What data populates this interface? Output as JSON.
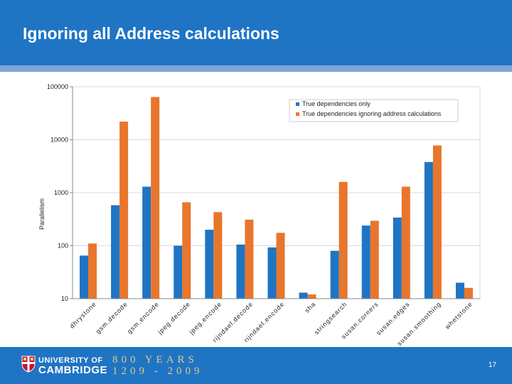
{
  "slide": {
    "title": "Ignoring all Address calculations",
    "page_number": "17"
  },
  "footer": {
    "university_line1": "UNIVERSITY OF",
    "university_line2": "CAMBRIDGE",
    "anniversary_line1": "800 YEARS",
    "anniversary_line2": "1209 - 2009"
  },
  "colors": {
    "header": "#1f74c4",
    "series_true": "#1f74c4",
    "series_ignore": "#e8762d"
  },
  "chart_data": {
    "type": "bar",
    "title": "",
    "xlabel": "",
    "ylabel": "Parallelism",
    "yscale": "log",
    "ylim": [
      10,
      100000
    ],
    "y_ticks": [
      10,
      100,
      1000,
      10000,
      100000
    ],
    "y_tick_labels": [
      "10",
      "100",
      "1000",
      "10000",
      "100000"
    ],
    "legend_position": "top-right",
    "categories": [
      "dhrystone",
      "gsm.decode",
      "gsm.encode",
      "jpeg.decode",
      "jpeg.encode",
      "rijndael.decode",
      "rijndael.encode",
      "sha",
      "stringsearch",
      "susan.corners",
      "susan.edges",
      "susan.smoothing",
      "whetstone"
    ],
    "series": [
      {
        "name": "True dependencies only",
        "values": [
          65,
          580,
          1300,
          100,
          200,
          105,
          93,
          13,
          80,
          240,
          340,
          3800,
          20
        ]
      },
      {
        "name": "True dependencies ignoring address calculations",
        "values": [
          110,
          22000,
          64000,
          660,
          430,
          310,
          175,
          12,
          1600,
          295,
          1300,
          7800,
          16
        ]
      }
    ]
  }
}
